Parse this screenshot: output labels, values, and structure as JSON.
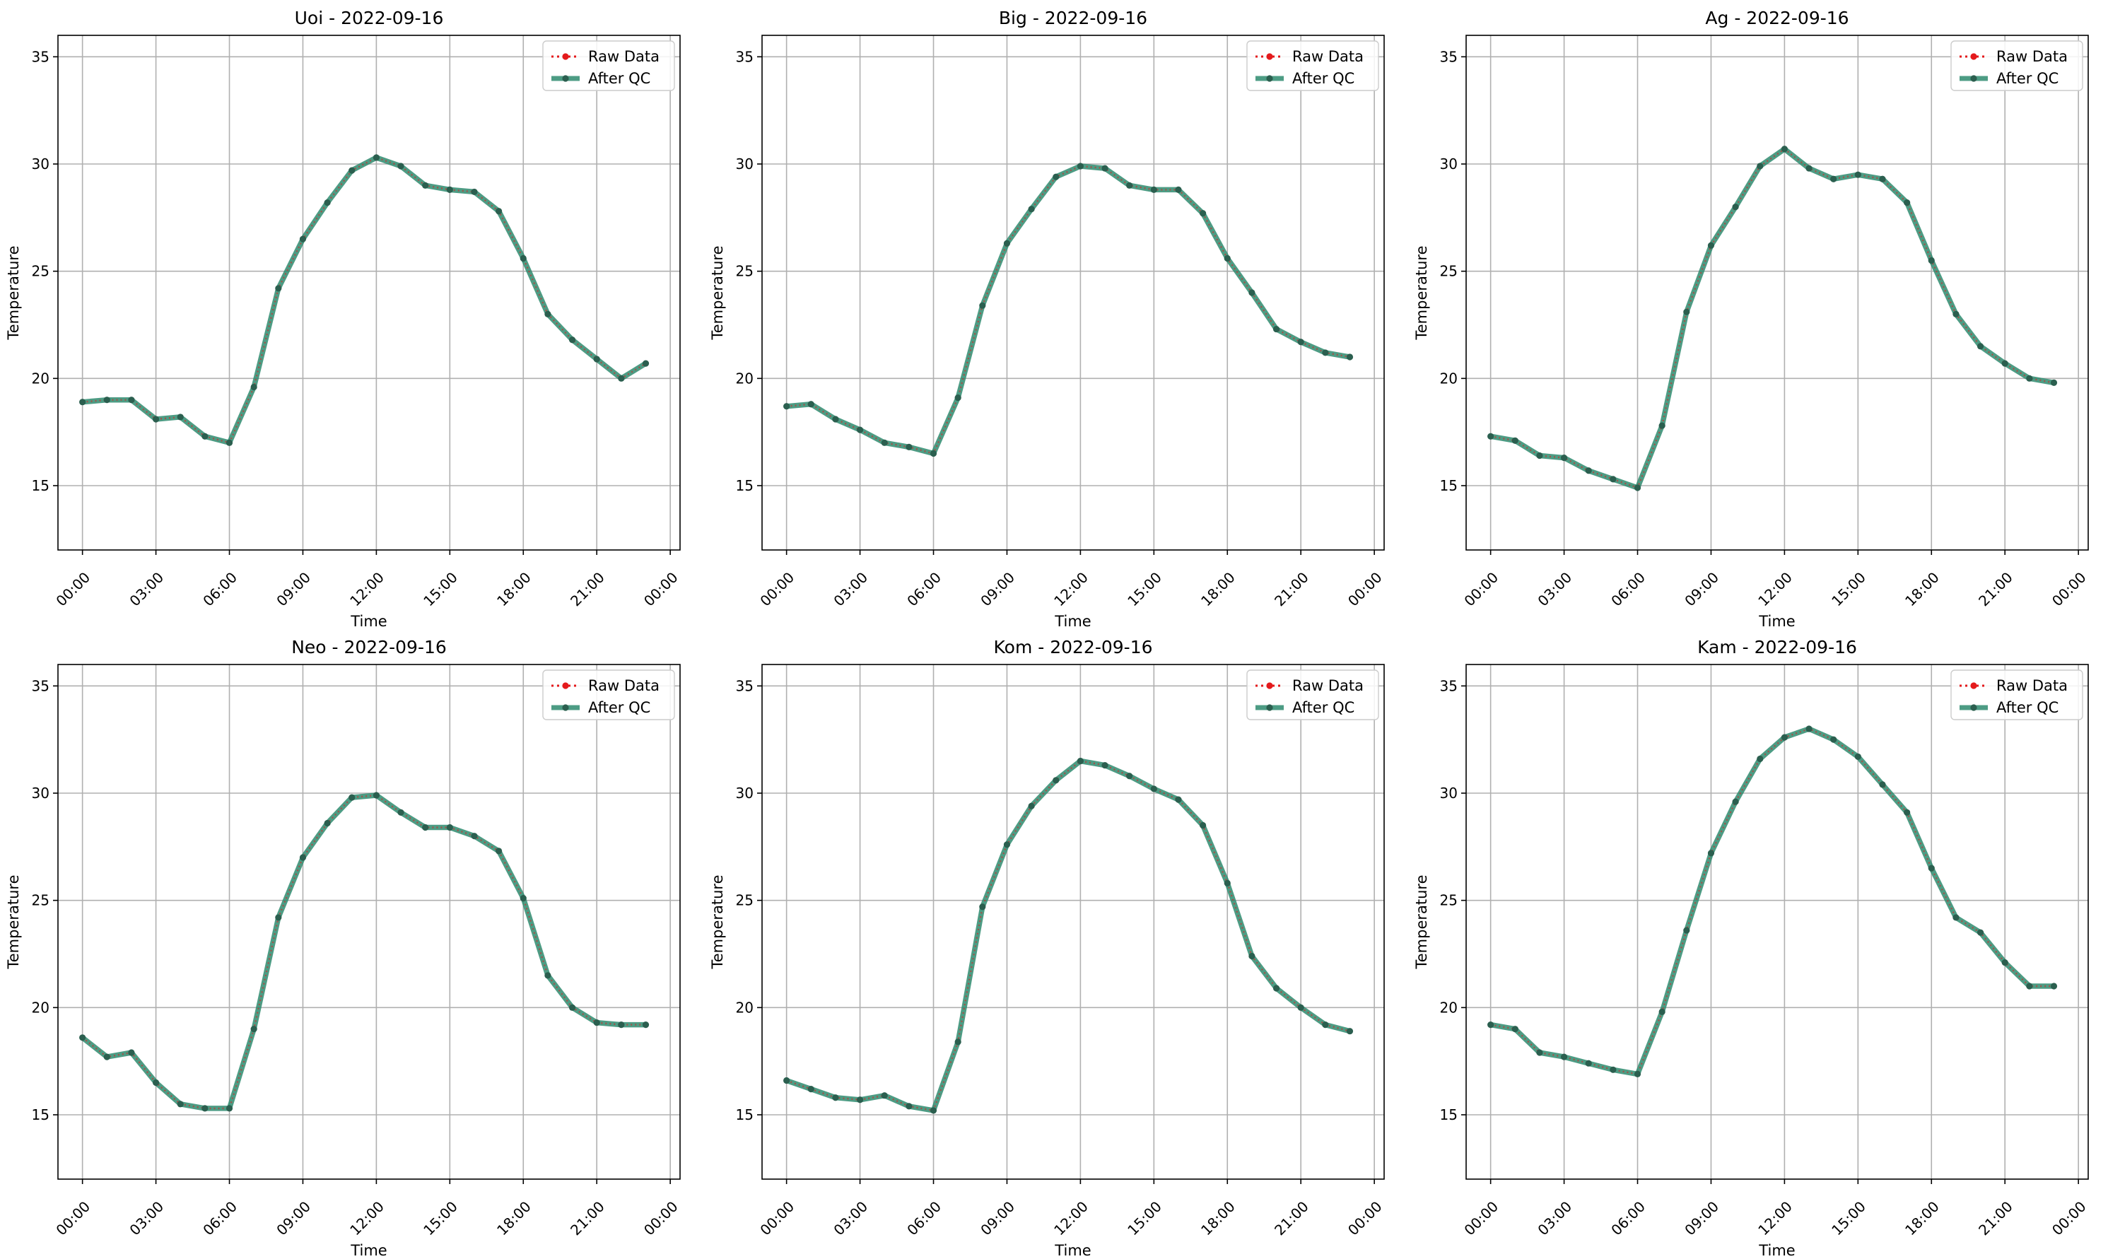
{
  "figure": {
    "xlabel": "Time",
    "ylabel": "Temperature",
    "legend": [
      "Raw Data",
      "After QC"
    ],
    "legend_placement": "top-right",
    "grid": true,
    "colors": {
      "raw": "#e41a1c",
      "qc": "#2e8b6e",
      "marker": "#2b5f4f",
      "grid": "#b0b0b0"
    }
  },
  "chart_data": [
    {
      "type": "line",
      "title": "Uoi - 2022-09-16",
      "xlabel": "Time",
      "ylabel": "Temperature",
      "x": [
        0,
        1,
        2,
        3,
        4,
        5,
        6,
        7,
        8,
        9,
        10,
        11,
        12,
        13,
        14,
        15,
        16,
        17,
        18,
        19,
        20,
        21,
        22,
        23
      ],
      "x_unit": "hour of day",
      "xticks": [
        "00:00",
        "03:00",
        "06:00",
        "09:00",
        "12:00",
        "15:00",
        "18:00",
        "21:00",
        "00:00"
      ],
      "yticks": [
        15,
        20,
        25,
        30,
        35
      ],
      "ylim": [
        12,
        36
      ],
      "series": [
        {
          "name": "Raw Data",
          "values": [
            18.9,
            19.0,
            19.0,
            18.1,
            18.2,
            17.3,
            17.0,
            19.6,
            24.2,
            26.5,
            28.2,
            29.7,
            30.3,
            29.9,
            29.0,
            28.8,
            28.7,
            27.8,
            25.6,
            23.0,
            21.8,
            20.9,
            20.0,
            20.7
          ]
        },
        {
          "name": "After QC",
          "values": [
            18.9,
            19.0,
            19.0,
            18.1,
            18.2,
            17.3,
            17.0,
            19.6,
            24.2,
            26.5,
            28.2,
            29.7,
            30.3,
            29.9,
            29.0,
            28.8,
            28.7,
            27.8,
            25.6,
            23.0,
            21.8,
            20.9,
            20.0,
            20.7
          ]
        }
      ]
    },
    {
      "type": "line",
      "title": "Big - 2022-09-16",
      "xlabel": "Time",
      "ylabel": "Temperature",
      "x": [
        0,
        1,
        2,
        3,
        4,
        5,
        6,
        7,
        8,
        9,
        10,
        11,
        12,
        13,
        14,
        15,
        16,
        17,
        18,
        19,
        20,
        21,
        22,
        23
      ],
      "x_unit": "hour of day",
      "xticks": [
        "00:00",
        "03:00",
        "06:00",
        "09:00",
        "12:00",
        "15:00",
        "18:00",
        "21:00",
        "00:00"
      ],
      "yticks": [
        15,
        20,
        25,
        30,
        35
      ],
      "ylim": [
        12,
        36
      ],
      "series": [
        {
          "name": "Raw Data",
          "values": [
            18.7,
            18.8,
            18.1,
            17.6,
            17.0,
            16.8,
            16.5,
            19.1,
            23.4,
            26.3,
            27.9,
            29.4,
            29.9,
            29.8,
            29.0,
            28.8,
            28.8,
            27.7,
            25.6,
            24.0,
            22.3,
            21.7,
            21.2,
            21.0
          ]
        },
        {
          "name": "After QC",
          "values": [
            18.7,
            18.8,
            18.1,
            17.6,
            17.0,
            16.8,
            16.5,
            19.1,
            23.4,
            26.3,
            27.9,
            29.4,
            29.9,
            29.8,
            29.0,
            28.8,
            28.8,
            27.7,
            25.6,
            24.0,
            22.3,
            21.7,
            21.2,
            21.0
          ]
        }
      ]
    },
    {
      "type": "line",
      "title": "Ag - 2022-09-16",
      "xlabel": "Time",
      "ylabel": "Temperature",
      "x": [
        0,
        1,
        2,
        3,
        4,
        5,
        6,
        7,
        8,
        9,
        10,
        11,
        12,
        13,
        14,
        15,
        16,
        17,
        18,
        19,
        20,
        21,
        22,
        23
      ],
      "x_unit": "hour of day",
      "xticks": [
        "00:00",
        "03:00",
        "06:00",
        "09:00",
        "12:00",
        "15:00",
        "18:00",
        "21:00",
        "00:00"
      ],
      "yticks": [
        15,
        20,
        25,
        30,
        35
      ],
      "ylim": [
        12,
        36
      ],
      "series": [
        {
          "name": "Raw Data",
          "values": [
            17.3,
            17.1,
            16.4,
            16.3,
            15.7,
            15.3,
            14.9,
            17.8,
            23.1,
            26.2,
            28.0,
            29.9,
            30.7,
            29.8,
            29.3,
            29.5,
            29.3,
            28.2,
            25.5,
            23.0,
            21.5,
            20.7,
            20.0,
            19.8
          ]
        },
        {
          "name": "After QC",
          "values": [
            17.3,
            17.1,
            16.4,
            16.3,
            15.7,
            15.3,
            14.9,
            17.8,
            23.1,
            26.2,
            28.0,
            29.9,
            30.7,
            29.8,
            29.3,
            29.5,
            29.3,
            28.2,
            25.5,
            23.0,
            21.5,
            20.7,
            20.0,
            19.8
          ]
        }
      ]
    },
    {
      "type": "line",
      "title": "Neo - 2022-09-16",
      "xlabel": "Time",
      "ylabel": "Temperature",
      "x": [
        0,
        1,
        2,
        3,
        4,
        5,
        6,
        7,
        8,
        9,
        10,
        11,
        12,
        13,
        14,
        15,
        16,
        17,
        18,
        19,
        20,
        21,
        22,
        23
      ],
      "x_unit": "hour of day",
      "xticks": [
        "00:00",
        "03:00",
        "06:00",
        "09:00",
        "12:00",
        "15:00",
        "18:00",
        "21:00",
        "00:00"
      ],
      "yticks": [
        15,
        20,
        25,
        30,
        35
      ],
      "ylim": [
        12,
        36
      ],
      "series": [
        {
          "name": "Raw Data",
          "values": [
            18.6,
            17.7,
            17.9,
            16.5,
            15.5,
            15.3,
            15.3,
            19.0,
            24.2,
            27.0,
            28.6,
            29.8,
            29.9,
            29.1,
            28.4,
            28.4,
            28.0,
            27.3,
            25.1,
            21.5,
            20.0,
            19.3,
            19.2,
            19.2
          ]
        },
        {
          "name": "After QC",
          "values": [
            18.6,
            17.7,
            17.9,
            16.5,
            15.5,
            15.3,
            15.3,
            19.0,
            24.2,
            27.0,
            28.6,
            29.8,
            29.9,
            29.1,
            28.4,
            28.4,
            28.0,
            27.3,
            25.1,
            21.5,
            20.0,
            19.3,
            19.2,
            19.2
          ]
        }
      ]
    },
    {
      "type": "line",
      "title": "Kom - 2022-09-16",
      "xlabel": "Time",
      "ylabel": "Temperature",
      "x": [
        0,
        1,
        2,
        3,
        4,
        5,
        6,
        7,
        8,
        9,
        10,
        11,
        12,
        13,
        14,
        15,
        16,
        17,
        18,
        19,
        20,
        21,
        22,
        23
      ],
      "x_unit": "hour of day",
      "xticks": [
        "00:00",
        "03:00",
        "06:00",
        "09:00",
        "12:00",
        "15:00",
        "18:00",
        "21:00",
        "00:00"
      ],
      "yticks": [
        15,
        20,
        25,
        30,
        35
      ],
      "ylim": [
        12,
        36
      ],
      "series": [
        {
          "name": "Raw Data",
          "values": [
            16.6,
            16.2,
            15.8,
            15.7,
            15.9,
            15.4,
            15.2,
            18.4,
            24.7,
            27.6,
            29.4,
            30.6,
            31.5,
            31.3,
            30.8,
            30.2,
            29.7,
            28.5,
            25.8,
            22.4,
            20.9,
            20.0,
            19.2,
            18.9
          ]
        },
        {
          "name": "After QC",
          "values": [
            16.6,
            16.2,
            15.8,
            15.7,
            15.9,
            15.4,
            15.2,
            18.4,
            24.7,
            27.6,
            29.4,
            30.6,
            31.5,
            31.3,
            30.8,
            30.2,
            29.7,
            28.5,
            25.8,
            22.4,
            20.9,
            20.0,
            19.2,
            18.9
          ]
        }
      ]
    },
    {
      "type": "line",
      "title": "Kam - 2022-09-16",
      "xlabel": "Time",
      "ylabel": "Temperature",
      "x": [
        0,
        1,
        2,
        3,
        4,
        5,
        6,
        7,
        8,
        9,
        10,
        11,
        12,
        13,
        14,
        15,
        16,
        17,
        18,
        19,
        20,
        21,
        22,
        23
      ],
      "x_unit": "hour of day",
      "xticks": [
        "00:00",
        "03:00",
        "06:00",
        "09:00",
        "12:00",
        "15:00",
        "18:00",
        "21:00",
        "00:00"
      ],
      "yticks": [
        15,
        20,
        25,
        30,
        35
      ],
      "ylim": [
        12,
        36
      ],
      "series": [
        {
          "name": "Raw Data",
          "values": [
            19.2,
            19.0,
            17.9,
            17.7,
            17.4,
            17.1,
            16.9,
            19.8,
            23.6,
            27.2,
            29.6,
            31.6,
            32.6,
            33.0,
            32.5,
            31.7,
            30.4,
            29.1,
            26.5,
            24.2,
            23.5,
            22.1,
            21.0,
            21.0
          ]
        },
        {
          "name": "After QC",
          "values": [
            19.2,
            19.0,
            17.9,
            17.7,
            17.4,
            17.1,
            16.9,
            19.8,
            23.6,
            27.2,
            29.6,
            31.6,
            32.6,
            33.0,
            32.5,
            31.7,
            30.4,
            29.1,
            26.5,
            24.2,
            23.5,
            22.1,
            21.0,
            21.0
          ]
        }
      ]
    }
  ]
}
